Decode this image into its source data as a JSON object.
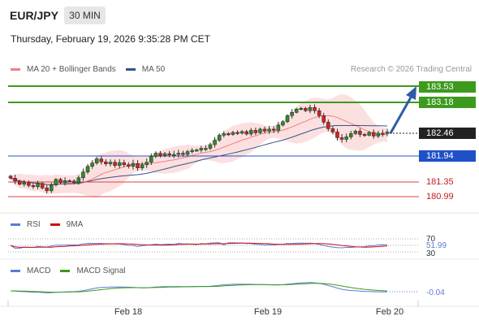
{
  "header": {
    "pair": "EUR/JPY",
    "timeframe": "30 MIN",
    "datetime": "Thursday, February 19, 2026 9:35:28 PM CET",
    "copyright": "Research © 2026 Trading Central"
  },
  "legend": {
    "ma20": "MA 20 + Bollinger Bands",
    "ma50": "MA 50",
    "rsi": "RSI",
    "rsi_ma": "9MA",
    "macd": "MACD",
    "macd_signal": "MACD Signal"
  },
  "colors": {
    "green": "#3c9a1e",
    "blue": "#2050c8",
    "red": "#e04040",
    "dark": "#222222",
    "band": "#fbd5d5",
    "ma20": "#f08080",
    "ma50": "#34528a"
  },
  "levels": {
    "r2": "183.53",
    "r1": "183.18",
    "last": "182.46",
    "pivot": "181.94",
    "s1": "181.35",
    "s2": "180.99"
  },
  "chart_data": {
    "type": "candlestick",
    "x_ticks": [
      "Feb 18",
      "Feb 19",
      "Feb 20"
    ],
    "ylim": [
      180.6,
      183.9
    ],
    "levels": [
      183.53,
      183.18,
      182.46,
      181.94,
      181.35,
      180.99
    ],
    "closes": [
      181.33,
      181.26,
      181.18,
      181.22,
      181.15,
      181.12,
      181.2,
      181.09,
      181.02,
      181.16,
      181.3,
      181.22,
      181.27,
      181.26,
      181.22,
      181.34,
      181.48,
      181.62,
      181.7,
      181.8,
      181.73,
      181.68,
      181.72,
      181.64,
      181.71,
      181.66,
      181.62,
      181.69,
      181.58,
      181.66,
      181.72,
      181.86,
      181.94,
      181.88,
      181.93,
      181.9,
      181.91,
      181.94,
      181.91,
      181.98,
      182.01,
      182.02,
      182.06,
      182.06,
      182.15,
      182.26,
      182.38,
      182.42,
      182.4,
      182.45,
      182.43,
      182.47,
      182.41,
      182.5,
      182.44,
      182.53,
      182.48,
      182.53,
      182.5,
      182.63,
      182.71,
      182.86,
      182.94,
      183.02,
      183.04,
      182.98,
      183.06,
      182.98,
      182.86,
      182.7,
      182.54,
      182.46,
      182.32,
      182.28,
      182.34,
      182.42,
      182.48,
      182.4,
      182.38,
      182.45,
      182.36,
      182.43,
      182.42,
      182.46
    ],
    "rsi": {
      "last": "51.99",
      "upper": 70,
      "lower": 30,
      "upper_label": "70",
      "lower_label": "30"
    },
    "macd": {
      "last": "-0.04"
    }
  }
}
